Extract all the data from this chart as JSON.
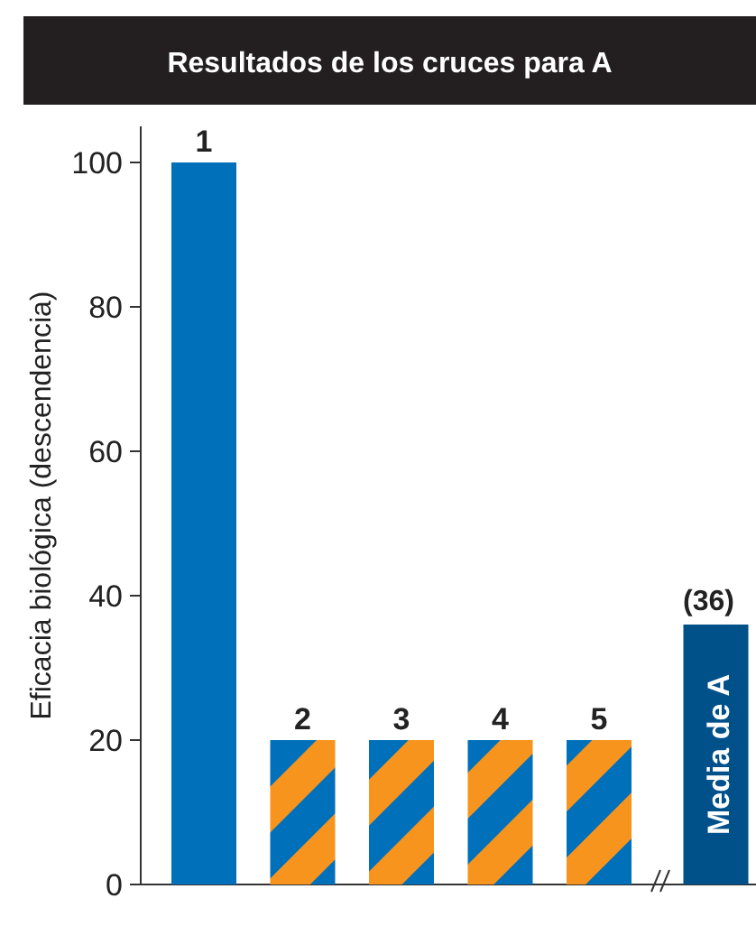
{
  "chart_data": {
    "type": "bar",
    "title": "Resultados de los cruces para A",
    "ylabel": "Eficacia biológica (descendencia)",
    "categories": [
      "1",
      "2",
      "3",
      "4",
      "5",
      "Media de A"
    ],
    "values": [
      100,
      20,
      20,
      20,
      20,
      36
    ],
    "colors": [
      "#0070bb",
      "#0070bb",
      "#0070bb",
      "#0070bb",
      "#0070bb",
      "#00508a"
    ],
    "value_labels": [
      null,
      null,
      null,
      null,
      null,
      "(36)"
    ],
    "ylim": [
      0,
      105
    ],
    "yticks": [
      0,
      20,
      40,
      60,
      80,
      100
    ],
    "grid": false
  }
}
